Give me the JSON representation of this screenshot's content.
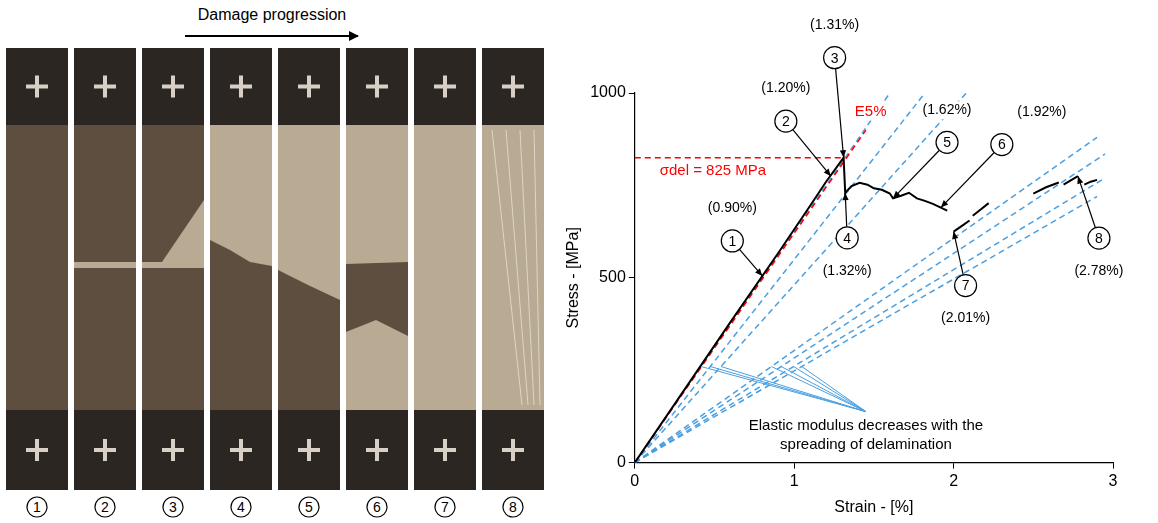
{
  "photo": {
    "heading": "Damage progression",
    "specimens": [
      "1",
      "2",
      "3",
      "4",
      "5",
      "6",
      "7",
      "8"
    ]
  },
  "chart_data": {
    "type": "line",
    "xlabel": "Strain - [%]",
    "ylabel": "Stress - [MPa]",
    "xlim": [
      0,
      3
    ],
    "ylim": [
      0,
      1000
    ],
    "xticks": [
      0,
      1,
      2,
      3
    ],
    "yticks": [
      0,
      500,
      1000
    ],
    "grid": false,
    "series": [
      {
        "color": "#000000",
        "line_style": "solid",
        "x": [
          0,
          0.3,
          0.6,
          0.9,
          1.1,
          1.2,
          1.31,
          1.32,
          1.36,
          1.41,
          1.46,
          1.5,
          1.55,
          1.6,
          1.62,
          1.67,
          1.72,
          1.77,
          1.82,
          1.87,
          1.92,
          1.96,
          1.98,
          2.0,
          2.05,
          2.1,
          2.11,
          2.12,
          2.17,
          2.22,
          2.3,
          2.5,
          2.58,
          2.66,
          2.67,
          2.69,
          2.74,
          2.78,
          2.8,
          2.82,
          2.86,
          2.9
        ],
        "values": [
          0,
          190,
          380,
          567,
          695,
          760,
          825,
          730,
          748,
          757,
          752,
          742,
          738,
          728,
          715,
          722,
          730,
          715,
          708,
          700,
          690,
          682,
          null,
          625,
          640,
          655,
          null,
          668,
          685,
          702,
          null,
          728,
          745,
          758,
          null,
          752,
          765,
          775,
          null,
          752,
          760,
          765
        ]
      },
      {
        "color": "#ff0000",
        "line_style": "dashed",
        "x": [
          0,
          1.45
        ],
        "values": [
          0,
          900
        ]
      },
      {
        "color": "#ff0000",
        "line_style": "dashed",
        "x": [
          0,
          1.31
        ],
        "values": [
          825,
          825
        ]
      },
      {
        "color": "#4a9fe0",
        "line_style": "dashed",
        "x": [
          0,
          1.6
        ],
        "values": [
          0,
          1000
        ]
      },
      {
        "color": "#4a9fe0",
        "line_style": "dashed",
        "x": [
          0,
          1.82
        ],
        "values": [
          0,
          1000
        ]
      },
      {
        "color": "#4a9fe0",
        "line_style": "dashed",
        "x": [
          0,
          2.08
        ],
        "values": [
          0,
          1000
        ]
      },
      {
        "color": "#4a9fe0",
        "line_style": "dashed",
        "x": [
          0,
          2.9
        ],
        "values": [
          0,
          880
        ]
      },
      {
        "color": "#4a9fe0",
        "line_style": "dashed",
        "x": [
          0,
          2.95
        ],
        "values": [
          0,
          835
        ]
      },
      {
        "color": "#4a9fe0",
        "line_style": "dashed",
        "x": [
          0,
          2.95
        ],
        "values": [
          0,
          770
        ]
      },
      {
        "color": "#4a9fe0",
        "line_style": "dashed",
        "x": [
          0,
          2.9
        ],
        "values": [
          0,
          720
        ]
      }
    ],
    "points": [
      {
        "label": "1",
        "strain_label": "(0.90%)",
        "x": 0.8,
        "y": 505
      },
      {
        "label": "2",
        "strain_label": "(1.20%)",
        "x": 1.23,
        "y": 775
      },
      {
        "label": "3",
        "strain_label": "(1.31%)",
        "x": 1.31,
        "y": 825
      },
      {
        "label": "4",
        "strain_label": "(1.32%)",
        "x": 1.32,
        "y": 730
      },
      {
        "label": "5",
        "strain_label": "(1.62%)",
        "x": 1.62,
        "y": 715
      },
      {
        "label": "6",
        "strain_label": "(1.92%)",
        "x": 1.92,
        "y": 690
      },
      {
        "label": "7",
        "strain_label": "(2.01%)",
        "x": 2.0,
        "y": 625
      },
      {
        "label": "8",
        "strain_label": "(2.78%)",
        "x": 2.78,
        "y": 775
      }
    ],
    "annotations": [
      {
        "text": "σdel = 825 MPa",
        "x": 0.49,
        "y": 790,
        "color": "#ff0000"
      },
      {
        "text": "E5%",
        "x": 1.48,
        "y": 950,
        "color": "#ff0000"
      },
      {
        "text": "Elastic modulus decreases with the spreading of delamination",
        "x": 1.45,
        "y": 100,
        "color": "#000000"
      }
    ]
  }
}
